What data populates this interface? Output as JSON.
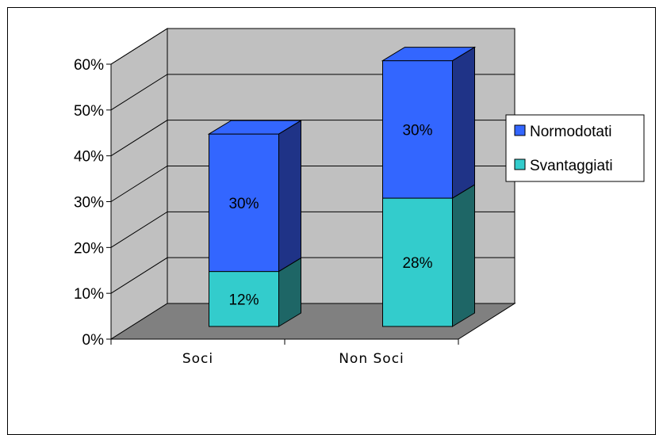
{
  "chart_data": {
    "type": "bar",
    "subtype": "stacked-3d",
    "categories": [
      "Soci",
      "Non Soci"
    ],
    "series": [
      {
        "name": "Svantaggiati",
        "values": [
          12,
          28
        ],
        "labels": [
          "12%",
          "28%"
        ],
        "color": "#33CCCC",
        "side_color": "#1E6666"
      },
      {
        "name": "Normodotati",
        "values": [
          30,
          30
        ],
        "labels": [
          "30%",
          "30%"
        ],
        "color": "#3366FF",
        "side_color": "#1F3387"
      }
    ],
    "y_ticks": [
      "0%",
      "10%",
      "20%",
      "30%",
      "40%",
      "50%",
      "60%"
    ],
    "ylim": [
      0,
      60
    ],
    "grid": true,
    "legend_position": "right",
    "colors": {
      "wall": "#C0C0C0",
      "floor": "#808080",
      "gridline": "#000000"
    }
  }
}
